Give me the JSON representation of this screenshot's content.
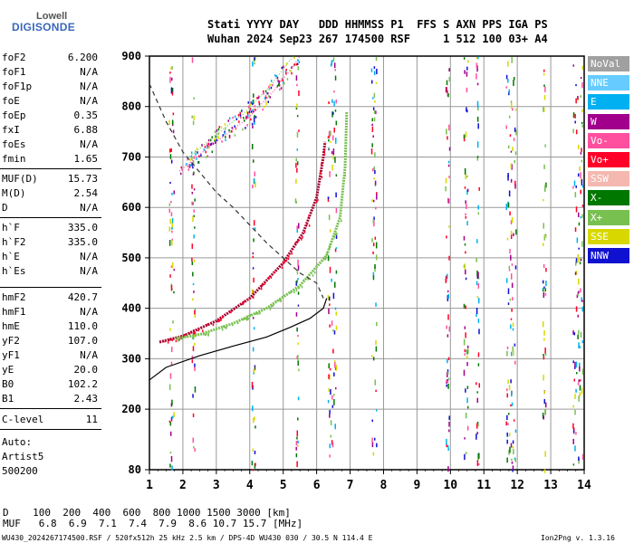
{
  "logo": {
    "line1": "Lowell",
    "line2": "DIGISONDE"
  },
  "header": {
    "row1": "Stati YYYY DAY   DDD HHMMSS P1  FFS S AXN PPS IGA PS",
    "row2": "Wuhan 2024 Sep23 267 174500 RSF     1 512 100 03+ A4"
  },
  "params": [
    {
      "key": "foF2",
      "value": "6.200"
    },
    {
      "key": "foF1",
      "value": "N/A"
    },
    {
      "key": "foF1p",
      "value": "N/A"
    },
    {
      "key": "foE",
      "value": "N/A"
    },
    {
      "key": "foEp",
      "value": "0.35"
    },
    {
      "key": "fxI",
      "value": "6.88"
    },
    {
      "key": "foEs",
      "value": "N/A"
    },
    {
      "key": "fmin",
      "value": "1.65"
    },
    {
      "key": "MUF(D)",
      "value": "15.73"
    },
    {
      "key": "M(D)",
      "value": "2.54"
    },
    {
      "key": "D",
      "value": "N/A"
    },
    {
      "key": "h`F",
      "value": "335.0"
    },
    {
      "key": "h`F2",
      "value": "335.0"
    },
    {
      "key": "h`E",
      "value": "N/A"
    },
    {
      "key": "h`Es",
      "value": "N/A"
    },
    {
      "key": "hmF2",
      "value": "420.7"
    },
    {
      "key": "hmF1",
      "value": "N/A"
    },
    {
      "key": "hmE",
      "value": "110.0"
    },
    {
      "key": "yF2",
      "value": "107.0"
    },
    {
      "key": "yF1",
      "value": "N/A"
    },
    {
      "key": "yE",
      "value": "20.0"
    },
    {
      "key": "B0",
      "value": "102.2"
    },
    {
      "key": "B1",
      "value": "2.43"
    },
    {
      "key": "C-level",
      "value": "11"
    }
  ],
  "auto": {
    "label": "Auto:",
    "artist": "Artist5",
    "version": "500200"
  },
  "legend": [
    {
      "label": "NoVal",
      "color": "#a0a0a0"
    },
    {
      "label": "NNE",
      "color": "#66ccff"
    },
    {
      "label": "E",
      "color": "#00b0f0"
    },
    {
      "label": "W",
      "color": "#a0008c"
    },
    {
      "label": "Vo-",
      "color": "#ff50a0"
    },
    {
      "label": "Vo+",
      "color": "#ff0028"
    },
    {
      "label": "SSW",
      "color": "#f4b8b0"
    },
    {
      "label": "X-",
      "color": "#007800"
    },
    {
      "label": "X+",
      "color": "#78c050"
    },
    {
      "label": "SSE",
      "color": "#d8d800"
    },
    {
      "label": "NNW",
      "color": "#1010d0"
    }
  ],
  "footer": {
    "d_row": "D    100  200  400  600  800 1000 1500 3000 [km]",
    "muf_row": "MUF   6.8  6.9  7.1  7.4  7.9  8.6 10.7 15.7 [MHz]",
    "file_line": "WU430_2024267174500.RSF / 520fx512h 25 kHz 2.5 km / DPS-4D WU430 030 / 30.5 N 114.4 E",
    "version": "Ion2Png v. 1.3.16"
  },
  "chart_data": {
    "type": "scatter",
    "xlabel": "",
    "ylabel": "",
    "x_ticks": [
      1,
      2,
      3,
      4,
      5,
      6,
      7,
      8,
      9,
      10,
      11,
      12,
      13,
      14
    ],
    "y_ticks": [
      80,
      200,
      300,
      400,
      500,
      600,
      700,
      800,
      900
    ],
    "xlim": [
      1,
      14
    ],
    "ylim": [
      80,
      900
    ],
    "grid": true,
    "legend_position": "right",
    "series": [
      {
        "name": "Vo+",
        "color": "#a00030",
        "kind": "trace",
        "points": [
          [
            1.3,
            333
          ],
          [
            2,
            345
          ],
          [
            3,
            375
          ],
          [
            4,
            420
          ],
          [
            5,
            490
          ],
          [
            5.6,
            550
          ],
          [
            6,
            620
          ],
          [
            6.2,
            700
          ],
          [
            6.25,
            730
          ]
        ]
      },
      {
        "name": "X+",
        "color": "#78c050",
        "kind": "trace",
        "points": [
          [
            1.8,
            340
          ],
          [
            2.5,
            348
          ],
          [
            3.5,
            370
          ],
          [
            4.5,
            400
          ],
          [
            5.5,
            445
          ],
          [
            6.3,
            505
          ],
          [
            6.7,
            580
          ],
          [
            6.85,
            680
          ],
          [
            6.9,
            790
          ]
        ]
      },
      {
        "name": "Vo-",
        "color": "#ff50a0",
        "kind": "trace",
        "points": [
          [
            1.9,
            672
          ],
          [
            2.5,
            705
          ],
          [
            3.2,
            740
          ],
          [
            4,
            780
          ],
          [
            4.7,
            830
          ],
          [
            5.3,
            880
          ],
          [
            5.5,
            900
          ]
        ]
      },
      {
        "name": "X-",
        "color": "#78c050",
        "kind": "trace",
        "points": [
          [
            2.2,
            700
          ],
          [
            3,
            745
          ],
          [
            3.8,
            785
          ],
          [
            4.6,
            840
          ],
          [
            5.3,
            900
          ]
        ]
      }
    ],
    "profile": {
      "color": "#000000",
      "dash": false,
      "points": [
        [
          1,
          258
        ],
        [
          1.5,
          283
        ],
        [
          2.5,
          306
        ],
        [
          3.5,
          325
        ],
        [
          4.5,
          343
        ],
        [
          5.2,
          362
        ],
        [
          5.8,
          380
        ],
        [
          6.2,
          400
        ],
        [
          6.3,
          420
        ]
      ]
    },
    "density_profile": {
      "color": "#000000",
      "dash": true,
      "points": [
        [
          1,
          845
        ],
        [
          1.5,
          770
        ],
        [
          2,
          710
        ],
        [
          2.5,
          670
        ],
        [
          3,
          630
        ],
        [
          3.5,
          600
        ],
        [
          4,
          565
        ],
        [
          4.5,
          530
        ],
        [
          5,
          500
        ],
        [
          5.5,
          470
        ],
        [
          6,
          450
        ],
        [
          6.2,
          420
        ]
      ]
    }
  }
}
